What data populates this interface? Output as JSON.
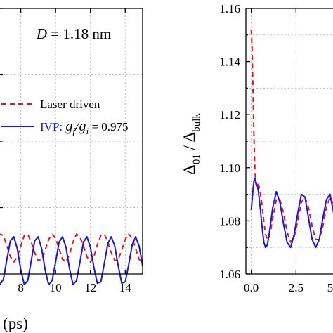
{
  "chart_data": [
    {
      "type": "line",
      "title": "",
      "annotation": {
        "label": "D",
        "value": "= 1.18 nm"
      },
      "xlabel": "(ps)",
      "ylabel": "",
      "xlim": [
        6.4,
        15
      ],
      "xticks": [
        8,
        10,
        12,
        14
      ],
      "xtick_labels": [
        "8",
        "10",
        "12",
        "14"
      ],
      "ylim": [
        0.9,
        1.1
      ],
      "grid": true,
      "legend_placement": "left-middle",
      "series": [
        {
          "name": "Laser driven",
          "style": "dashed",
          "color": "#e8141b",
          "period": 1.5,
          "x": [
            6.4,
            6.6,
            6.8,
            7.0,
            7.2,
            7.4,
            7.6,
            7.8,
            8.0,
            8.2,
            8.4,
            8.6,
            8.8,
            9.0,
            9.2,
            9.4,
            9.6,
            9.8,
            10.0,
            10.2,
            10.4,
            10.6,
            10.8,
            11.0,
            11.2,
            11.4,
            11.6,
            11.8,
            12.0,
            12.2,
            12.4,
            12.6,
            12.8,
            13.0,
            13.2,
            13.4,
            13.6,
            13.8,
            14.0,
            14.2,
            14.4,
            14.6,
            14.8,
            15.0
          ],
          "y": [
            0.917,
            0.924,
            0.93,
            0.929,
            0.921,
            0.913,
            0.909,
            0.913,
            0.921,
            0.929,
            0.93,
            0.924,
            0.916,
            0.91,
            0.911,
            0.918,
            0.926,
            0.93,
            0.927,
            0.919,
            0.911,
            0.909,
            0.915,
            0.924,
            0.93,
            0.928,
            0.921,
            0.913,
            0.909,
            0.913,
            0.922,
            0.929,
            0.93,
            0.924,
            0.916,
            0.91,
            0.911,
            0.918,
            0.926,
            0.93,
            0.927,
            0.919,
            0.911,
            0.909
          ]
        },
        {
          "name_parts": [
            "IVP: g",
            "f",
            "/g",
            "i",
            " = 0.975"
          ],
          "style": "solid",
          "color": "#1a1acc",
          "period": 1.5,
          "x": [
            6.4,
            6.6,
            6.8,
            7.0,
            7.2,
            7.4,
            7.6,
            7.8,
            8.0,
            8.2,
            8.4,
            8.6,
            8.8,
            9.0,
            9.2,
            9.4,
            9.6,
            9.8,
            10.0,
            10.2,
            10.4,
            10.6,
            10.8,
            11.0,
            11.2,
            11.4,
            11.6,
            11.8,
            12.0,
            12.2,
            12.4,
            12.6,
            12.8,
            13.0,
            13.2,
            13.4,
            13.6,
            13.8,
            14.0,
            14.2,
            14.4,
            14.6,
            14.8,
            15.0
          ],
          "y": [
            0.92,
            0.903,
            0.892,
            0.896,
            0.911,
            0.925,
            0.928,
            0.919,
            0.903,
            0.892,
            0.895,
            0.91,
            0.925,
            0.928,
            0.919,
            0.903,
            0.892,
            0.895,
            0.909,
            0.924,
            0.928,
            0.92,
            0.904,
            0.892,
            0.895,
            0.909,
            0.924,
            0.928,
            0.92,
            0.905,
            0.893,
            0.894,
            0.908,
            0.923,
            0.928,
            0.921,
            0.906,
            0.893,
            0.894,
            0.907,
            0.922,
            0.928,
            0.921,
            0.906
          ]
        }
      ]
    },
    {
      "type": "line",
      "title": "",
      "xlabel": "",
      "ylabel_parts": [
        "Δ",
        "01",
        " / Δ",
        "bulk"
      ],
      "xlim": [
        -0.3,
        5.0
      ],
      "xticks": [
        0.0,
        2.5
      ],
      "xtick_labels": [
        "0.0",
        "2.5"
      ],
      "xtick_label_cut": "5",
      "ylim": [
        1.06,
        1.16
      ],
      "yticks": [
        1.06,
        1.08,
        1.1,
        1.12,
        1.14,
        1.16
      ],
      "ytick_labels": [
        "1.06",
        "1.08",
        "1.10",
        "1.12",
        "1.14",
        "1.16"
      ],
      "grid": true,
      "series": [
        {
          "style": "dashed",
          "color": "#e8141b",
          "x": [
            0.0,
            0.05,
            0.1,
            0.15,
            0.2,
            0.25,
            0.3,
            0.4,
            0.5,
            0.6,
            0.7,
            0.8,
            0.9,
            1.0,
            1.1,
            1.2,
            1.4,
            1.6,
            1.8,
            2.0,
            2.2,
            2.4,
            2.6,
            2.8,
            3.0,
            3.2,
            3.4,
            3.6,
            3.8,
            4.0,
            4.2,
            4.4,
            4.6,
            4.8,
            5.0
          ],
          "y": [
            1.152,
            1.144,
            1.128,
            1.112,
            1.1,
            1.094,
            1.093,
            1.094,
            1.091,
            1.086,
            1.08,
            1.075,
            1.073,
            1.074,
            1.077,
            1.081,
            1.088,
            1.088,
            1.083,
            1.076,
            1.072,
            1.074,
            1.08,
            1.087,
            1.089,
            1.085,
            1.078,
            1.073,
            1.073,
            1.078,
            1.085,
            1.089,
            1.086,
            1.08,
            1.075
          ]
        },
        {
          "style": "solid",
          "color": "#1a1acc",
          "x": [
            0.0,
            0.05,
            0.1,
            0.15,
            0.2,
            0.25,
            0.3,
            0.35,
            0.4,
            0.5,
            0.6,
            0.7,
            0.8,
            0.9,
            1.0,
            1.1,
            1.2,
            1.4,
            1.6,
            1.8,
            2.0,
            2.2,
            2.4,
            2.6,
            2.8,
            3.0,
            3.2,
            3.4,
            3.6,
            3.8,
            4.0,
            4.2,
            4.4,
            4.6,
            4.8,
            5.0
          ],
          "y": [
            1.084,
            1.088,
            1.092,
            1.095,
            1.096,
            1.095,
            1.094,
            1.093,
            1.091,
            1.085,
            1.078,
            1.072,
            1.07,
            1.071,
            1.075,
            1.08,
            1.085,
            1.091,
            1.087,
            1.079,
            1.072,
            1.07,
            1.075,
            1.083,
            1.09,
            1.089,
            1.081,
            1.073,
            1.07,
            1.073,
            1.081,
            1.088,
            1.09,
            1.083,
            1.076,
            1.071
          ]
        }
      ]
    }
  ]
}
